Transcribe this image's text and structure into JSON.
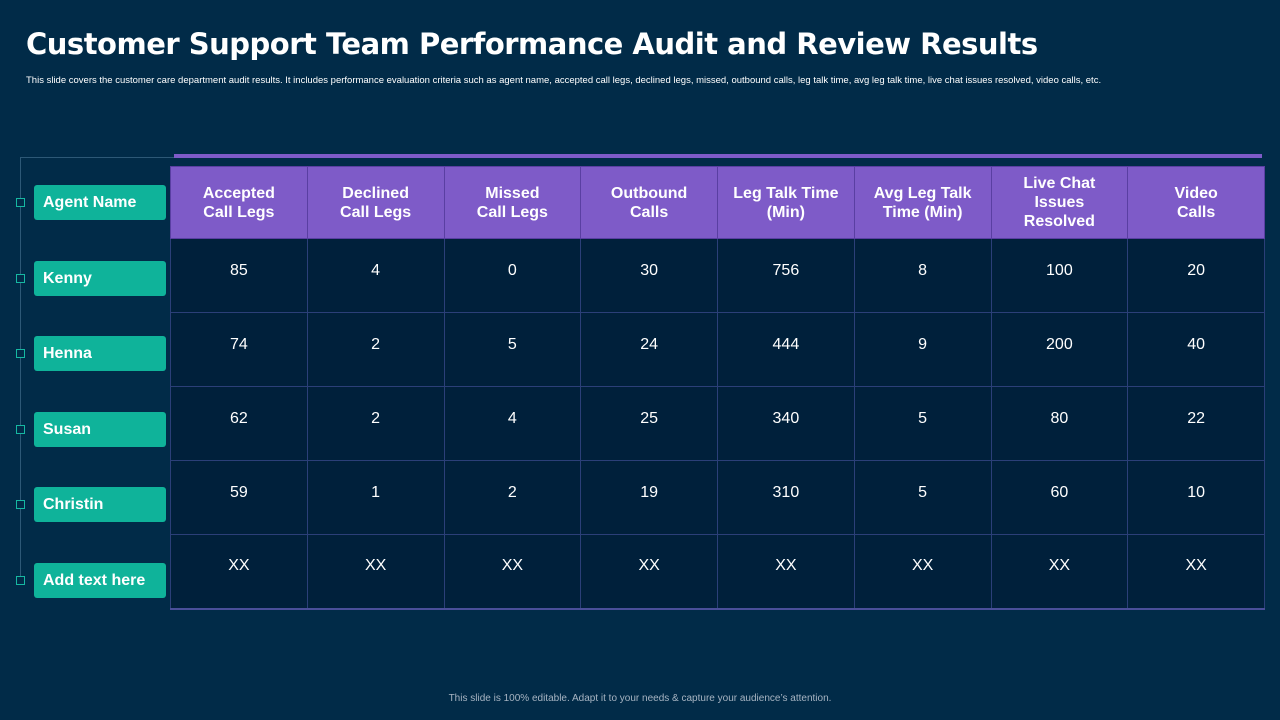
{
  "title": "Customer Support Team Performance Audit and Review Results",
  "subtitle": "This slide covers the customer care department audit results. It includes performance evaluation criteria such as agent name, accepted call legs, declined legs, missed, outbound calls, leg talk time, avg leg talk time, live chat issues resolved, video calls, etc.",
  "agents": [
    {
      "label": "Agent Name"
    },
    {
      "label": "Kenny"
    },
    {
      "label": "Henna"
    },
    {
      "label": "Susan"
    },
    {
      "label": "Christin"
    },
    {
      "label": "Add text  here"
    }
  ],
  "table": {
    "headers": [
      [
        "Accepted",
        "Call Legs"
      ],
      [
        "Declined",
        "Call Legs"
      ],
      [
        "Missed",
        "Call Legs"
      ],
      [
        "Outbound",
        "Calls"
      ],
      [
        "Leg Talk Time",
        "(Min)"
      ],
      [
        "Avg Leg Talk",
        "Time (Min)"
      ],
      [
        "Live Chat",
        "Issues",
        "Resolved"
      ],
      [
        "Video",
        "Calls"
      ]
    ],
    "rows": [
      [
        "85",
        "4",
        "0",
        "30",
        "756",
        "8",
        "100",
        "20"
      ],
      [
        "74",
        "2",
        "5",
        "24",
        "444",
        "9",
        "200",
        "40"
      ],
      [
        "62",
        "2",
        "4",
        "25",
        "340",
        "5",
        "80",
        "22"
      ],
      [
        "59",
        "1",
        "2",
        "19",
        "310",
        "5",
        "60",
        "10"
      ],
      [
        "XX",
        "XX",
        "XX",
        "XX",
        "XX",
        "XX",
        "XX",
        "XX"
      ]
    ]
  },
  "footer": "This slide is 100% editable. Adapt it to your needs & capture your audience’s attention.",
  "colors": {
    "background": "#012b48",
    "header_purple": "#7e5bc8",
    "agent_teal": "#0fb39a",
    "cell_bg": "#00203b"
  }
}
